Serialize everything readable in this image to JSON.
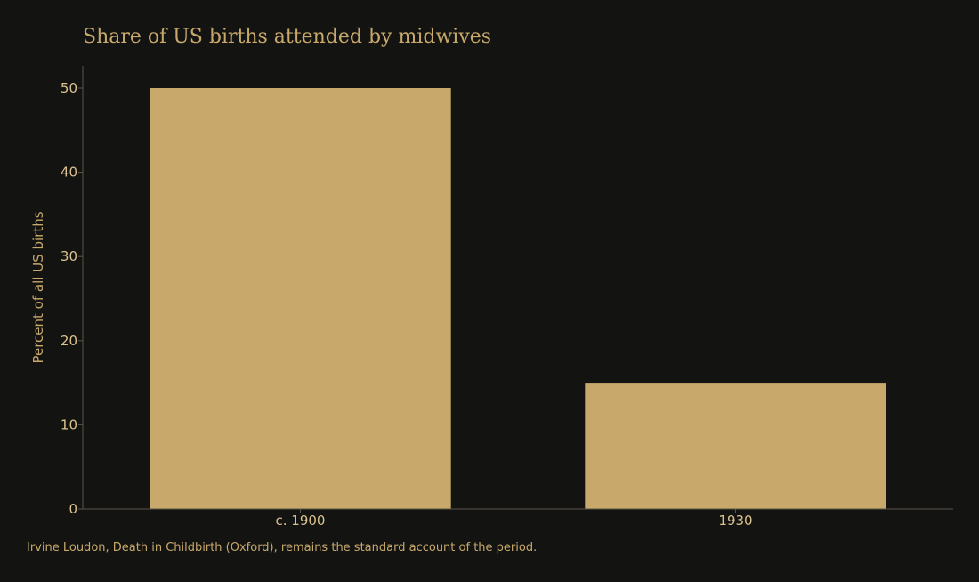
{
  "chart_data": {
    "type": "bar",
    "title": "Share of US births attended by midwives",
    "categories": [
      "c. 1900",
      "1930"
    ],
    "values": [
      50,
      15
    ],
    "xlabel": "",
    "ylabel": "Percent of all US births",
    "ylim": [
      0,
      50
    ],
    "yticks": [
      0,
      10,
      20,
      30,
      40,
      50
    ],
    "grid": false,
    "legend": "none"
  },
  "colors": {
    "background": "#131311",
    "bar": "#c8a96b",
    "axis": "#5a5546",
    "text": "#c8a96b",
    "tick_text": "#dcc28e"
  },
  "source_note": "Irvine Loudon, Death in Childbirth (Oxford), remains the standard account of the period."
}
